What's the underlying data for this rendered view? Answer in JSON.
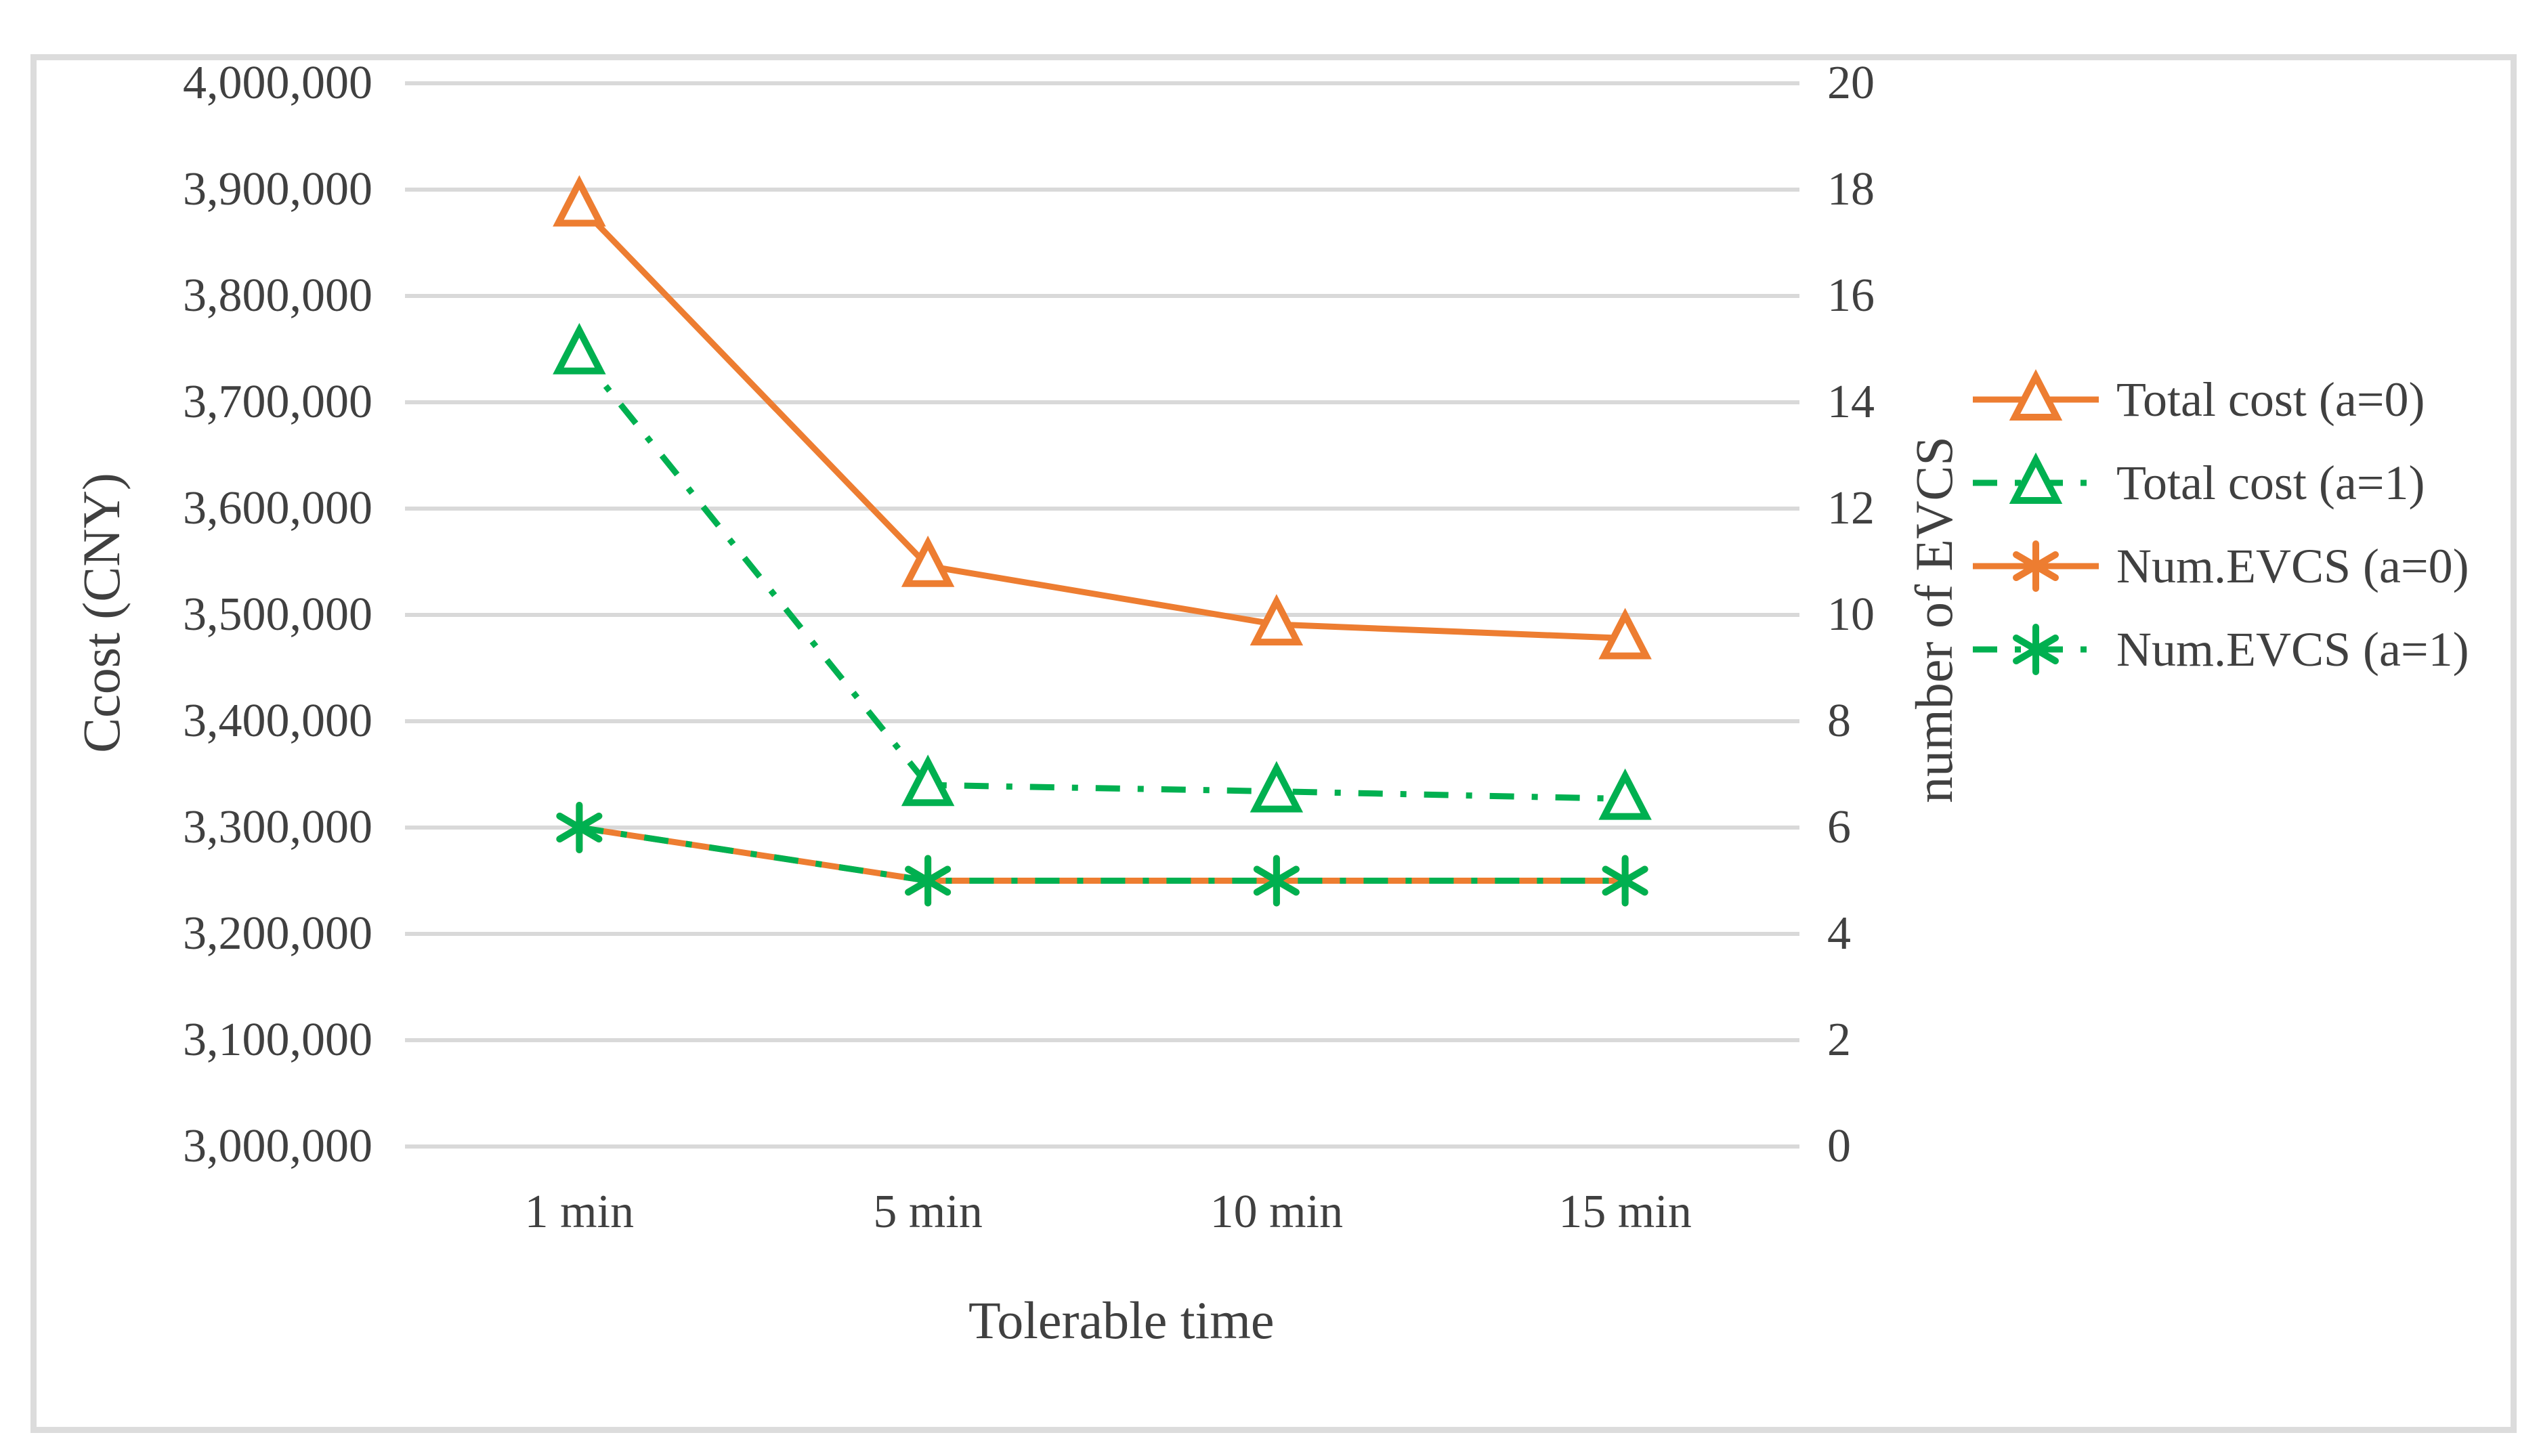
{
  "figure": {
    "background": "#ffffff",
    "border_color": "#dcdcdc"
  },
  "chart_data": {
    "type": "line",
    "categories": [
      "1 min",
      "5 min",
      "10 min",
      "15 min"
    ],
    "xlabel": "Tolerable time",
    "ylabel_left": "Ccost (CNY)",
    "ylabel_right": "number of EVCS",
    "left_axis": {
      "min": 3000000,
      "max": 4000000,
      "step": 100000,
      "format": "thousands-comma"
    },
    "right_axis": {
      "min": 0,
      "max": 20,
      "step": 2,
      "format": "plain"
    },
    "grid": true,
    "legend_position": "right",
    "series": [
      {
        "name": "Total cost (a=0)",
        "axis": "left",
        "color": "#ed7d31",
        "line_style": "solid",
        "marker": "triangle-open",
        "values": [
          3885000,
          3546000,
          3491000,
          3478000
        ]
      },
      {
        "name": "Total cost (a=1)",
        "axis": "left",
        "color": "#00b050",
        "line_style": "dash-dot",
        "marker": "triangle-open",
        "values": [
          3746000,
          3340000,
          3334000,
          3327000
        ]
      },
      {
        "name": "Num.EVCS (a=0)",
        "axis": "right",
        "color": "#ed7d31",
        "line_style": "solid",
        "marker": "asterisk",
        "values": [
          6,
          5,
          5,
          5
        ]
      },
      {
        "name": "Num.EVCS (a=1)",
        "axis": "right",
        "color": "#00b050",
        "line_style": "dash-dot",
        "marker": "asterisk",
        "values": [
          6,
          5,
          5,
          5
        ]
      }
    ],
    "colors": {
      "gridline": "#d9d9d9",
      "text": "#404040"
    }
  }
}
